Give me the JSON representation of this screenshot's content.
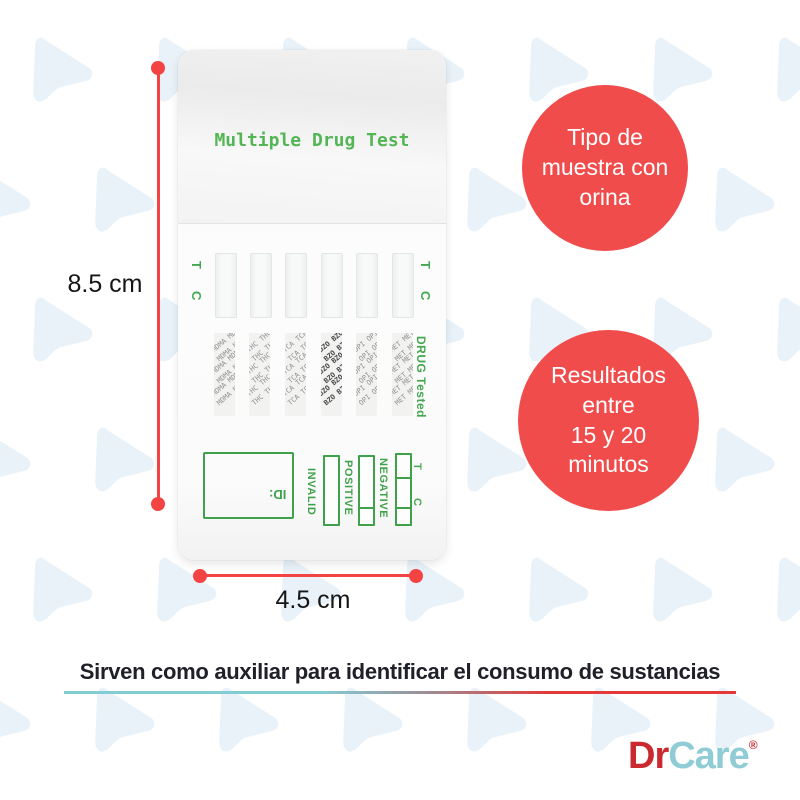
{
  "product_card": {
    "title": "Multiple Drug Test",
    "strip_marker_t": "T",
    "strip_marker_c": "C",
    "drug_tested_label": "DRUG Tested",
    "drug_panels": [
      "MDMA",
      "THC",
      "TCA",
      "BZO",
      "OPI",
      "MET"
    ],
    "id_label": "ID:",
    "result_legend": {
      "invalid": "INVALID",
      "positive": "POSITIVE",
      "negative": "NEGATIVE",
      "marker_t": "T",
      "marker_c": "C"
    }
  },
  "measurements": {
    "height": "8.5 cm",
    "width": "4.5 cm"
  },
  "badges": {
    "sample_type": {
      "line1": "Tipo de",
      "line2": "muestra con",
      "line3": "orina"
    },
    "result_time": {
      "line1": "Resultados",
      "line2": "entre",
      "line3": "15 y 20",
      "line4": "minutos"
    }
  },
  "footer": {
    "tagline": "Sirven como auxiliar para identificar el consumo de sustancias"
  },
  "brand": {
    "name_part1": "Dr",
    "name_part2": "Care",
    "registered": "®"
  },
  "colors": {
    "badge_red": "#f14c4c",
    "dimension_red": "#f34343",
    "print_green": "#43a84f",
    "title_green": "#53b553",
    "logo_red": "#cb2930",
    "logo_teal": "#8fccd5",
    "triangle_blue": "#e9f2f9",
    "underline_teal": "#84ccd5",
    "underline_red": "#e23a3a",
    "text_dark": "#20202a"
  }
}
